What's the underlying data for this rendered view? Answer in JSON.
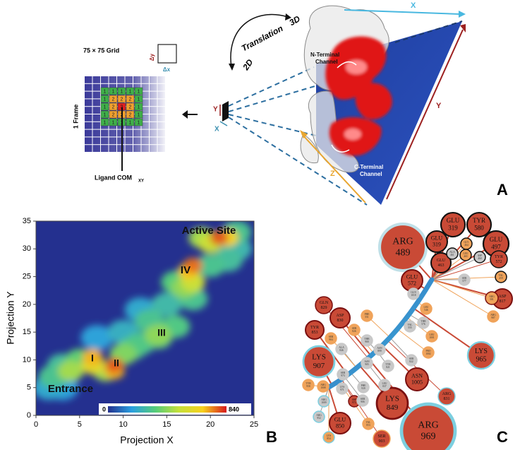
{
  "panel_a": {
    "label": "A",
    "grid_title": "75 × 75 Grid",
    "frame_label": "1 Frame",
    "ligand_label": "Ligand COM",
    "ligand_sub": "XY",
    "delta_y": "Δy",
    "delta_x": "Δx",
    "translation": "Translation",
    "dim3": "3D",
    "dim2": "2D",
    "n_channel": [
      "N-Terminal",
      "Channel"
    ],
    "c_channel": [
      "C-Terminal",
      "Channel"
    ],
    "axis_x": "X",
    "axis_y": "Y",
    "axis_z": "Z",
    "small_y": "Y",
    "small_x": "X",
    "grid_cells": [
      [
        1,
        1,
        1,
        1,
        1
      ],
      [
        1,
        2,
        2,
        2,
        1
      ],
      [
        1,
        2,
        3,
        2,
        1
      ],
      [
        1,
        2,
        2,
        2,
        1
      ],
      [
        1,
        1,
        1,
        1,
        1
      ]
    ],
    "cell_colors": [
      "#3fae49",
      "#f0a030",
      "#e02020"
    ]
  },
  "chart_data": {
    "type": "heatmap",
    "panel_label": "B",
    "xlabel": "Projection X",
    "ylabel": "Projection Y",
    "xlim": [
      0,
      25
    ],
    "ylim": [
      0,
      35
    ],
    "xticks": [
      0,
      5,
      10,
      15,
      20,
      25
    ],
    "yticks": [
      0,
      5,
      10,
      15,
      20,
      25,
      30,
      35
    ],
    "clim": [
      0,
      840
    ],
    "colormap": [
      "#24308f",
      "#2a9fe0",
      "#55cc7a",
      "#c6e03a",
      "#f7d11e",
      "#d7191c"
    ],
    "annotations": [
      "Active Site",
      "IV",
      "III",
      "II",
      "I",
      "Entrance"
    ],
    "x": [
      1.5,
      3,
      2,
      4,
      3,
      5,
      7,
      10,
      12,
      10,
      12,
      14,
      16,
      13,
      15,
      18,
      16,
      23,
      20,
      22,
      19,
      23,
      6.5,
      6.5,
      8,
      9,
      9,
      11,
      14,
      17,
      18,
      17.5,
      18,
      21,
      22,
      20
    ],
    "y": [
      5,
      5,
      7,
      8,
      9,
      10,
      14,
      15,
      19,
      11,
      13,
      14,
      16,
      17,
      20,
      21,
      24,
      30,
      27,
      28,
      32,
      33,
      10.5,
      9,
      8,
      9,
      8,
      12,
      14.5,
      23,
      24,
      26,
      27,
      32,
      32,
      31
    ],
    "values": [
      200,
      180,
      300,
      450,
      280,
      350,
      180,
      220,
      200,
      400,
      300,
      330,
      320,
      300,
      260,
      300,
      330,
      250,
      300,
      280,
      450,
      300,
      700,
      600,
      450,
      780,
      700,
      320,
      420,
      420,
      520,
      680,
      760,
      780,
      650,
      520
    ]
  },
  "panel_c": {
    "label": "C",
    "nodes": [
      {
        "name": "ARG",
        "num": "489",
        "fill": "#c94a36",
        "ring": "#bfe0e8"
      },
      {
        "name": "GLU",
        "num": "319",
        "fill": "#c94a36",
        "ring": "#111111"
      },
      {
        "name": "TYR",
        "num": "580",
        "fill": "#c94a36",
        "ring": "#111111"
      },
      {
        "name": "GLU",
        "num": "497",
        "fill": "#c94a36",
        "ring": "#111111"
      },
      {
        "name": "GLU",
        "num": "319",
        "fill": "#c94a36",
        "ring": "#111111"
      },
      {
        "name": "GLU",
        "num": "463",
        "fill": "#c94a36",
        "ring": "#111111"
      },
      {
        "name": "TYR",
        "num": "572",
        "fill": "#c94a36",
        "ring": "#111111"
      },
      {
        "name": "GLU",
        "num": "572",
        "fill": "#c94a36",
        "ring": "#7a1010"
      },
      {
        "name": "ASP",
        "num": "817",
        "fill": "#c94a36",
        "ring": "#7a1010"
      },
      {
        "name": "ARG",
        "num": "581",
        "fill": "#f0a35a",
        "ring": "#7a1010"
      },
      {
        "name": "GLN",
        "num": "829",
        "fill": "#c94a36",
        "ring": "#7a1010"
      },
      {
        "name": "ASP",
        "num": "830",
        "fill": "#c94a36",
        "ring": "#7a1010"
      },
      {
        "name": "TYR",
        "num": "853",
        "fill": "#c94a36",
        "ring": "#7a1010"
      },
      {
        "name": "LYS",
        "num": "907",
        "fill": "#c94a36",
        "ring": "#7ccfe0"
      },
      {
        "name": "LYS",
        "num": "965",
        "fill": "#c94a36",
        "ring": "#7ccfe0"
      },
      {
        "name": "ASN",
        "num": "1005",
        "fill": "#c94a36",
        "ring": "#7a1010"
      },
      {
        "name": "ARG",
        "num": "831",
        "fill": "#c94a36",
        "ring": "#7ccfe0"
      },
      {
        "name": "LYS",
        "num": "849",
        "fill": "#c94a36",
        "ring": "#7a1010"
      },
      {
        "name": "GLU",
        "num": "850",
        "fill": "#c94a36",
        "ring": "#7a1010"
      },
      {
        "name": "SER",
        "num": "903",
        "fill": "#c94a36",
        "ring": "#f0a35a"
      },
      {
        "name": "ARG",
        "num": "969",
        "fill": "#c94a36",
        "ring": "#7ccfe0"
      },
      {
        "name": "GLY",
        "num": "464",
        "fill": "#f0a35a",
        "ring": "#111111"
      },
      {
        "name": "ALA",
        "num": "461",
        "fill": "#c8c8c8",
        "ring": "#111111"
      },
      {
        "name": "LEU",
        "num": "465",
        "fill": "#f0a35a",
        "ring": "#111111"
      },
      {
        "name": "VAL",
        "num": "459",
        "fill": "#f0a35a",
        "ring": "#111111"
      },
      {
        "name": "ASP",
        "num": "460",
        "fill": "#c8c8c8",
        "ring": "#111111"
      },
      {
        "name": "SER",
        "num": "577",
        "fill": "#c8c8c8",
        "ring": "#c8c8c8"
      },
      {
        "name": "ARG",
        "num": "987",
        "fill": "#f0a35a",
        "ring": "#f0a35a"
      },
      {
        "name": "LEU",
        "num": "546",
        "fill": "#f0a35a",
        "ring": "#f0a35a"
      },
      {
        "name": "GLN",
        "num": "1018",
        "fill": "#c8c8c8",
        "ring": "#c8c8c8"
      },
      {
        "name": "THR",
        "num": "576",
        "fill": "#c8c8c8",
        "ring": "#c8c8c8"
      },
      {
        "name": "VAL",
        "num": "555",
        "fill": "#c8c8c8",
        "ring": "#c8c8c8"
      },
      {
        "name": "LEU",
        "num": "1001",
        "fill": "#f0a35a",
        "ring": "#f0a35a"
      },
      {
        "name": "PHE",
        "num": "551",
        "fill": "#f0a35a",
        "ring": "#f0a35a"
      },
      {
        "name": "SER",
        "num": "826",
        "fill": "#f0a35a",
        "ring": "#f0a35a"
      },
      {
        "name": "THR",
        "num": "900",
        "fill": "#c8c8c8",
        "ring": "#c8c8c8"
      },
      {
        "name": "ASN",
        "num": "899",
        "fill": "#c8c8c8",
        "ring": "#c8c8c8"
      },
      {
        "name": "SER",
        "num": "822",
        "fill": "#c8c8c8",
        "ring": "#c8c8c8"
      },
      {
        "name": "PRO",
        "num": "1002",
        "fill": "#f0a35a",
        "ring": "#f0a35a"
      },
      {
        "name": "ALA",
        "num": "846",
        "fill": "#c8c8c8",
        "ring": "#c8c8c8"
      },
      {
        "name": "SER",
        "num": "904",
        "fill": "#f0a35a",
        "ring": "#f0a35a"
      },
      {
        "name": "ASN",
        "num": "905",
        "fill": "#c8c8c8",
        "ring": "#c8c8c8"
      },
      {
        "name": "TYR",
        "num": "821",
        "fill": "#c8c8c8",
        "ring": "#c8c8c8"
      },
      {
        "name": "ARG",
        "num": "1008",
        "fill": "#f0a35a",
        "ring": "#f0a35a"
      },
      {
        "name": "TYR",
        "num": "958",
        "fill": "#f0a35a",
        "ring": "#f0a35a"
      },
      {
        "name": "ARG",
        "num": "1009",
        "fill": "#c8c8c8",
        "ring": "#7ccfe0"
      },
      {
        "name": "ARG",
        "num": "952",
        "fill": "#c8c8c8",
        "ring": "#7ccfe0"
      },
      {
        "name": "SER",
        "num": "973",
        "fill": "#c8c8c8",
        "ring": "#c8c8c8"
      },
      {
        "name": "LYS",
        "num": "971",
        "fill": "#c8c8c8",
        "ring": "#c8c8c8"
      },
      {
        "name": "ASP",
        "num": "972",
        "fill": "#c94a36",
        "ring": "#7a1010"
      },
      {
        "name": "PHE",
        "num": "939",
        "fill": "#c8c8c8",
        "ring": "#c8c8c8"
      },
      {
        "name": "LEU",
        "num": "837",
        "fill": "#c8c8c8",
        "ring": "#c8c8c8"
      },
      {
        "name": "SER",
        "num": "906",
        "fill": "#c8c8c8",
        "ring": "#c8c8c8"
      },
      {
        "name": "VAL",
        "num": "853",
        "fill": "#f0a35a",
        "ring": "#f0a35a"
      },
      {
        "name": "LYS",
        "num": "854",
        "fill": "#f0a35a",
        "ring": "#7ccfe0"
      }
    ]
  }
}
